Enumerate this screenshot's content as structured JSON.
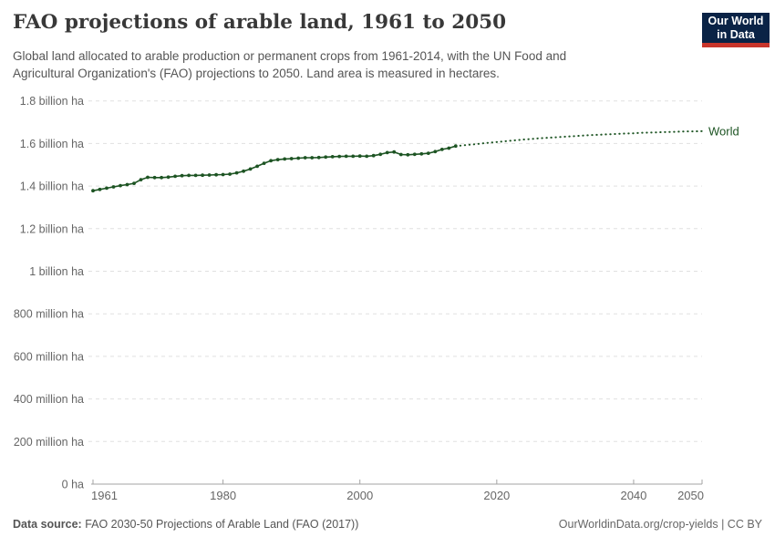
{
  "header": {
    "title": "FAO projections of arable land, 1961 to 2050",
    "subtitle_line1": "Global land allocated to arable production or permanent crops from 1961-2014, with the UN Food and",
    "subtitle_line2": "Agricultural Organization's (FAO) projections to 2050. Land area is measured in hectares.",
    "logo": {
      "line1": "Our World",
      "line2": "in Data",
      "bg_color": "#0a2346",
      "accent_color": "#c8352b"
    }
  },
  "footer": {
    "source_label": "Data source:",
    "source_text": " FAO 2030-50 Projections of Arable Land (FAO (2017))",
    "right_text": "OurWorldinData.org/crop-yields | CC BY"
  },
  "chart_data": {
    "type": "line",
    "title": "FAO projections of arable land, 1961 to 2050",
    "unit": "billion ha",
    "xlim": [
      1961,
      2050
    ],
    "ylim": [
      0,
      1.8
    ],
    "grid": true,
    "line_color": "#1d5423",
    "grid_color": "#e0e0e0",
    "axis_color": "#a3a3a3",
    "tick_label_color": "#666666",
    "end_label": "World",
    "x_ticks": [
      1961,
      1980,
      2000,
      2020,
      2040,
      2050
    ],
    "y_ticks": [
      {
        "value": 0,
        "label": "0 ha"
      },
      {
        "value": 0.2,
        "label": "200 million ha"
      },
      {
        "value": 0.4,
        "label": "400 million ha"
      },
      {
        "value": 0.6,
        "label": "600 million ha"
      },
      {
        "value": 0.8,
        "label": "800 million ha"
      },
      {
        "value": 1,
        "label": "1 billion ha"
      },
      {
        "value": 1.2,
        "label": "1.2 billion ha"
      },
      {
        "value": 1.4,
        "label": "1.4 billion ha"
      },
      {
        "value": 1.6,
        "label": "1.6 billion ha"
      },
      {
        "value": 1.8,
        "label": "1.8 billion ha"
      }
    ],
    "series": [
      {
        "name": "World (historical, 1961-2014)",
        "style": "solid",
        "markers": true,
        "x": [
          1961,
          1962,
          1963,
          1964,
          1965,
          1966,
          1967,
          1968,
          1969,
          1970,
          1971,
          1972,
          1973,
          1974,
          1975,
          1976,
          1977,
          1978,
          1979,
          1980,
          1981,
          1982,
          1983,
          1984,
          1985,
          1986,
          1987,
          1988,
          1989,
          1990,
          1991,
          1992,
          1993,
          1994,
          1995,
          1996,
          1997,
          1998,
          1999,
          2000,
          2001,
          2002,
          2003,
          2004,
          2005,
          2006,
          2007,
          2008,
          2009,
          2010,
          2011,
          2012,
          2013,
          2014
        ],
        "y": [
          1.378,
          1.384,
          1.39,
          1.396,
          1.402,
          1.407,
          1.413,
          1.43,
          1.441,
          1.44,
          1.44,
          1.442,
          1.446,
          1.449,
          1.45,
          1.45,
          1.451,
          1.452,
          1.453,
          1.454,
          1.456,
          1.462,
          1.47,
          1.48,
          1.493,
          1.507,
          1.519,
          1.524,
          1.527,
          1.529,
          1.531,
          1.533,
          1.533,
          1.534,
          1.536,
          1.538,
          1.539,
          1.54,
          1.54,
          1.541,
          1.54,
          1.543,
          1.549,
          1.557,
          1.56,
          1.548,
          1.547,
          1.549,
          1.551,
          1.554,
          1.562,
          1.572,
          1.578,
          1.588
        ]
      },
      {
        "name": "World (FAO projection, 2015-2050)",
        "style": "dotted",
        "markers": false,
        "x": [
          2015,
          2016,
          2017,
          2018,
          2019,
          2020,
          2021,
          2022,
          2023,
          2024,
          2025,
          2026,
          2027,
          2028,
          2029,
          2030,
          2031,
          2032,
          2033,
          2034,
          2035,
          2036,
          2037,
          2038,
          2039,
          2040,
          2041,
          2042,
          2043,
          2044,
          2045,
          2046,
          2047,
          2048,
          2049,
          2050
        ],
        "y": [
          1.591,
          1.594,
          1.597,
          1.601,
          1.604,
          1.607,
          1.61,
          1.613,
          1.616,
          1.619,
          1.621,
          1.624,
          1.626,
          1.628,
          1.63,
          1.632,
          1.634,
          1.636,
          1.638,
          1.64,
          1.641,
          1.643,
          1.644,
          1.646,
          1.647,
          1.648,
          1.65,
          1.651,
          1.652,
          1.653,
          1.654,
          1.655,
          1.656,
          1.657,
          1.657,
          1.658
        ]
      }
    ]
  }
}
